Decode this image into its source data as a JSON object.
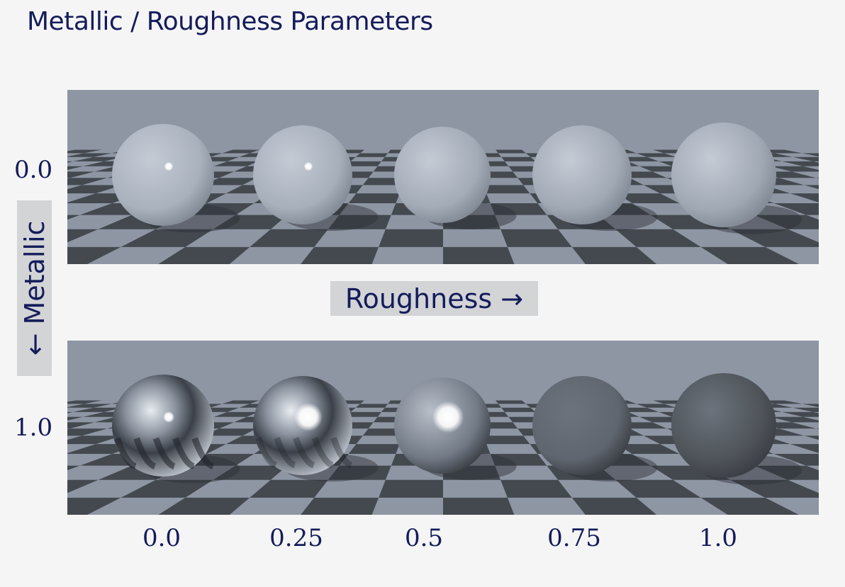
{
  "title": "Metallic / Roughness Parameters",
  "axes": {
    "roughness_label": "Roughness →",
    "metallic_label": "← Metallic",
    "metallic_values": [
      "0.0",
      "1.0"
    ],
    "roughness_values": [
      "0.0",
      "0.25",
      "0.5",
      "0.75",
      "1.0"
    ]
  },
  "colors": {
    "title": "#141c5a",
    "checker_light": "#8e96a3",
    "checker_dark": "#3e4249",
    "label_box": "#d3d4d6"
  },
  "spheres": {
    "dielectric": [
      {
        "roughness": "0.0",
        "base": "#a9b1bd"
      },
      {
        "roughness": "0.25",
        "base": "#a7afbb"
      },
      {
        "roughness": "0.5",
        "base": "#a3abb7"
      },
      {
        "roughness": "0.75",
        "base": "#a1a9b5"
      },
      {
        "roughness": "1.0",
        "base": "#a0a8b4"
      }
    ],
    "metal": [
      {
        "roughness": "0.0",
        "base": "#7a8290"
      },
      {
        "roughness": "0.25",
        "base": "#767e8b"
      },
      {
        "roughness": "0.5",
        "base": "#727a86"
      },
      {
        "roughness": "0.75",
        "base": "#60666f"
      },
      {
        "roughness": "1.0",
        "base": "#4e5359"
      }
    ]
  }
}
